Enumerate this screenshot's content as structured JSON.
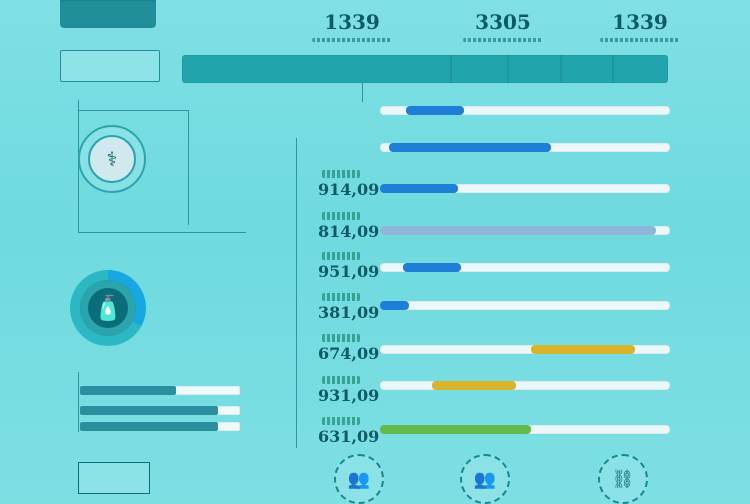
{
  "header": {
    "brand_text": "",
    "stats": [
      {
        "value": "1339"
      },
      {
        "value": "3305"
      },
      {
        "value": "1339"
      }
    ]
  },
  "left": {
    "subpanel_text": "",
    "label_under_circle": "",
    "donut_label": "",
    "mini_bars": [
      {
        "progress": 0.6
      },
      {
        "progress": 0.86
      },
      {
        "progress": 0.86
      }
    ],
    "mini_caption_top": "",
    "mini_caption_bottom": "",
    "box_small_text": "",
    "box_small_2_text": ""
  },
  "right": {
    "kpis": [
      {
        "value": "914,09"
      },
      {
        "value": "814,09"
      },
      {
        "value": "951,09"
      },
      {
        "value": "381,09"
      },
      {
        "value": "674,09"
      },
      {
        "value": "931,09"
      },
      {
        "value": "631,09"
      }
    ],
    "bars": [
      {
        "start": 0.09,
        "length": 0.2,
        "color": "#1f7fd8"
      },
      {
        "start": 0.03,
        "length": 0.56,
        "color": "#1f7fd8"
      },
      {
        "start": 0.0,
        "length": 0.27,
        "color": "#1f7fd8"
      },
      {
        "start": 0.0,
        "length": 0.95,
        "color": "#8fb5d8"
      },
      {
        "start": 0.08,
        "length": 0.2,
        "color": "#1f7fd8"
      },
      {
        "start": 0.0,
        "length": 0.1,
        "color": "#1f7fd8"
      },
      {
        "start": 0.52,
        "length": 0.36,
        "color": "#d7b42c"
      },
      {
        "start": 0.18,
        "length": 0.29,
        "color": "#d7b42c"
      },
      {
        "start": 0.0,
        "length": 0.52,
        "color": "#64b94b"
      }
    ],
    "bottom_icons": [
      {
        "icon": "group-icon"
      },
      {
        "icon": "group-icon"
      },
      {
        "icon": "network-icon"
      }
    ]
  }
}
